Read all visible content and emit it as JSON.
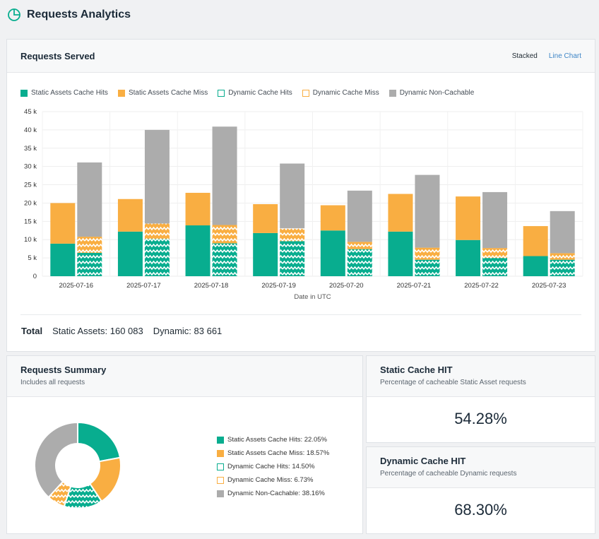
{
  "header": {
    "title": "Requests Analytics",
    "icon": "pie-chart-icon"
  },
  "served": {
    "title": "Requests Served",
    "toggle": {
      "stacked": "Stacked",
      "line_chart": "Line Chart"
    },
    "totals": {
      "label": "Total",
      "static": "Static Assets: 160 083",
      "dynamic": "Dynamic: 83 661"
    }
  },
  "legend": [
    {
      "label": "Static Assets Cache Hits",
      "style": "solid-teal"
    },
    {
      "label": "Static Assets Cache Miss",
      "style": "solid-orange"
    },
    {
      "label": "Dynamic Cache Hits",
      "style": "outline-teal"
    },
    {
      "label": "Dynamic Cache Miss",
      "style": "outline-orange"
    },
    {
      "label": "Dynamic Non-Cachable",
      "style": "solid-gray"
    }
  ],
  "colors": {
    "teal": "#08ad8f",
    "orange": "#f9ae42",
    "gray": "#acacac",
    "link": "#3f86c7"
  },
  "chart_data": {
    "type": "bar",
    "stacked": true,
    "xlabel": "Date in UTC",
    "ylabel": "",
    "ylim": [
      0,
      45000
    ],
    "yticks": [
      "0",
      "5 k",
      "10 k",
      "15 k",
      "20 k",
      "25 k",
      "30 k",
      "35 k",
      "40 k",
      "45 k"
    ],
    "categories": [
      "2025-07-16",
      "2025-07-17",
      "2025-07-18",
      "2025-07-19",
      "2025-07-20",
      "2025-07-21",
      "2025-07-22",
      "2025-07-23"
    ],
    "groups": [
      {
        "name": "Static Assets",
        "series": [
          {
            "name": "Static Assets Cache Hits",
            "values": [
              8900,
              12200,
              13900,
              11800,
              12500,
              12200,
              9900,
              5500
            ]
          },
          {
            "name": "Static Assets Cache Miss",
            "values": [
              11100,
              8900,
              8900,
              7900,
              6900,
              10300,
              11900,
              8200
            ]
          }
        ]
      },
      {
        "name": "Dynamic",
        "series": [
          {
            "name": "Dynamic Cache Hits",
            "values": [
              6400,
              10200,
              9000,
              9600,
              7400,
              4500,
              5000,
              4500
            ]
          },
          {
            "name": "Dynamic Cache Miss",
            "values": [
              4400,
              4200,
              5000,
              3500,
              2000,
              3300,
              2700,
              1800
            ]
          },
          {
            "name": "Dynamic Non-Cachable",
            "values": [
              20300,
              25600,
              26900,
              17700,
              14000,
              19900,
              15300,
              11500
            ]
          }
        ]
      }
    ]
  },
  "summary": {
    "title": "Requests Summary",
    "subtitle": "Includes all requests",
    "chart_data": {
      "type": "pie",
      "donut": true,
      "slices": [
        {
          "label": "Static Assets Cache Hits: 22.05%",
          "value": 22.05
        },
        {
          "label": "Static Assets Cache Miss: 18.57%",
          "value": 18.57
        },
        {
          "label": "Dynamic Cache Hits: 14.50%",
          "value": 14.5
        },
        {
          "label": "Dynamic Cache Miss: 6.73%",
          "value": 6.73
        },
        {
          "label": "Dynamic Non-Cachable: 38.16%",
          "value": 38.16
        }
      ]
    }
  },
  "static_hit": {
    "title": "Static Cache HIT",
    "subtitle": "Percentage of cacheable Static Asset requests",
    "value": "54.28%"
  },
  "dynamic_hit": {
    "title": "Dynamic Cache HIT",
    "subtitle": "Percentage of cacheable Dynamic requests",
    "value": "68.30%"
  }
}
